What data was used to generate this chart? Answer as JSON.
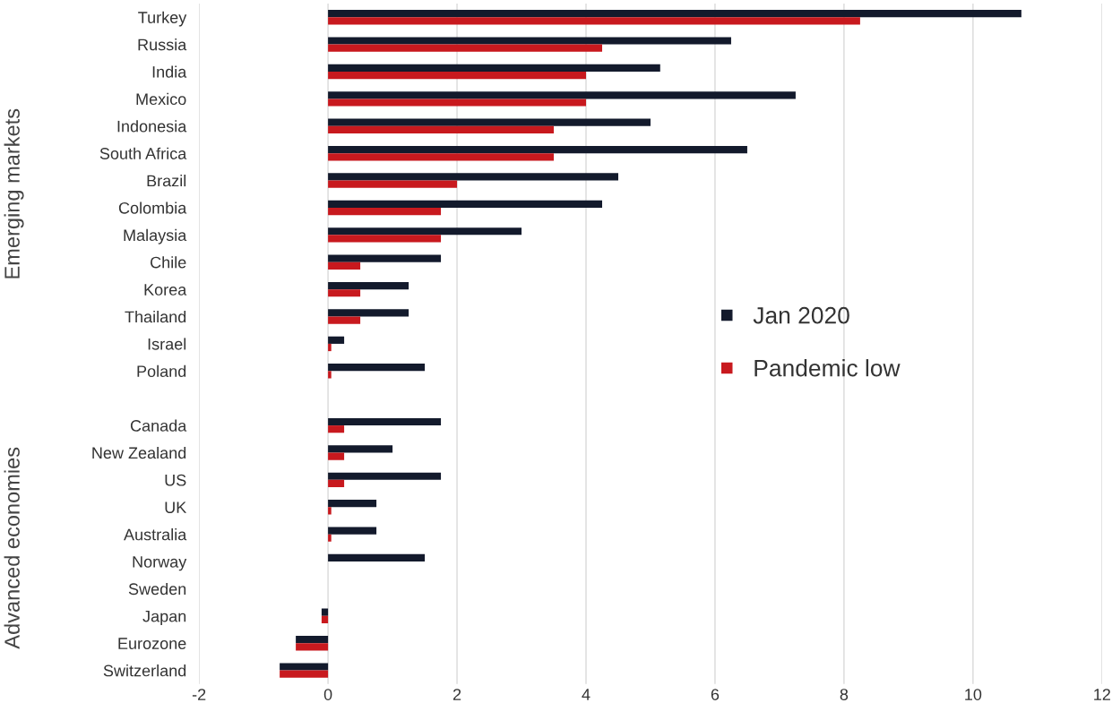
{
  "chart_data": {
    "type": "bar",
    "orientation": "horizontal",
    "categories": [
      "Turkey",
      "Russia",
      "India",
      "Mexico",
      "Indonesia",
      "South Africa",
      "Brazil",
      "Colombia",
      "Malaysia",
      "Chile",
      "Korea",
      "Thailand",
      "Israel",
      "Poland",
      null,
      "Canada",
      "New Zealand",
      "US",
      "UK",
      "Australia",
      "Norway",
      "Sweden",
      "Japan",
      "Eurozone",
      "Switzerland"
    ],
    "series": [
      {
        "name": "Jan 2020",
        "color": "#131a2c",
        "values": [
          10.75,
          6.25,
          5.15,
          7.25,
          5.0,
          6.5,
          4.5,
          4.25,
          3.0,
          1.75,
          1.25,
          1.25,
          0.25,
          1.5,
          null,
          1.75,
          1.0,
          1.75,
          0.75,
          0.75,
          1.5,
          0,
          -0.1,
          -0.5,
          -0.75
        ]
      },
      {
        "name": "Pandemic low",
        "color": "#c8191e",
        "values": [
          8.25,
          4.25,
          4.0,
          4.0,
          3.5,
          3.5,
          2.0,
          1.75,
          1.75,
          0.5,
          0.5,
          0.5,
          0.05,
          0.05,
          null,
          0.25,
          0.25,
          0.25,
          0.05,
          0.05,
          0,
          0,
          -0.1,
          -0.5,
          -0.75
        ]
      }
    ],
    "xlim": [
      -2,
      12
    ],
    "xticks": [
      -2,
      0,
      2,
      4,
      6,
      8,
      10,
      12
    ],
    "grid": "x",
    "legend": "right",
    "marker": "square",
    "annotations": [
      "Emerging markets",
      "Advanced economies"
    ]
  }
}
